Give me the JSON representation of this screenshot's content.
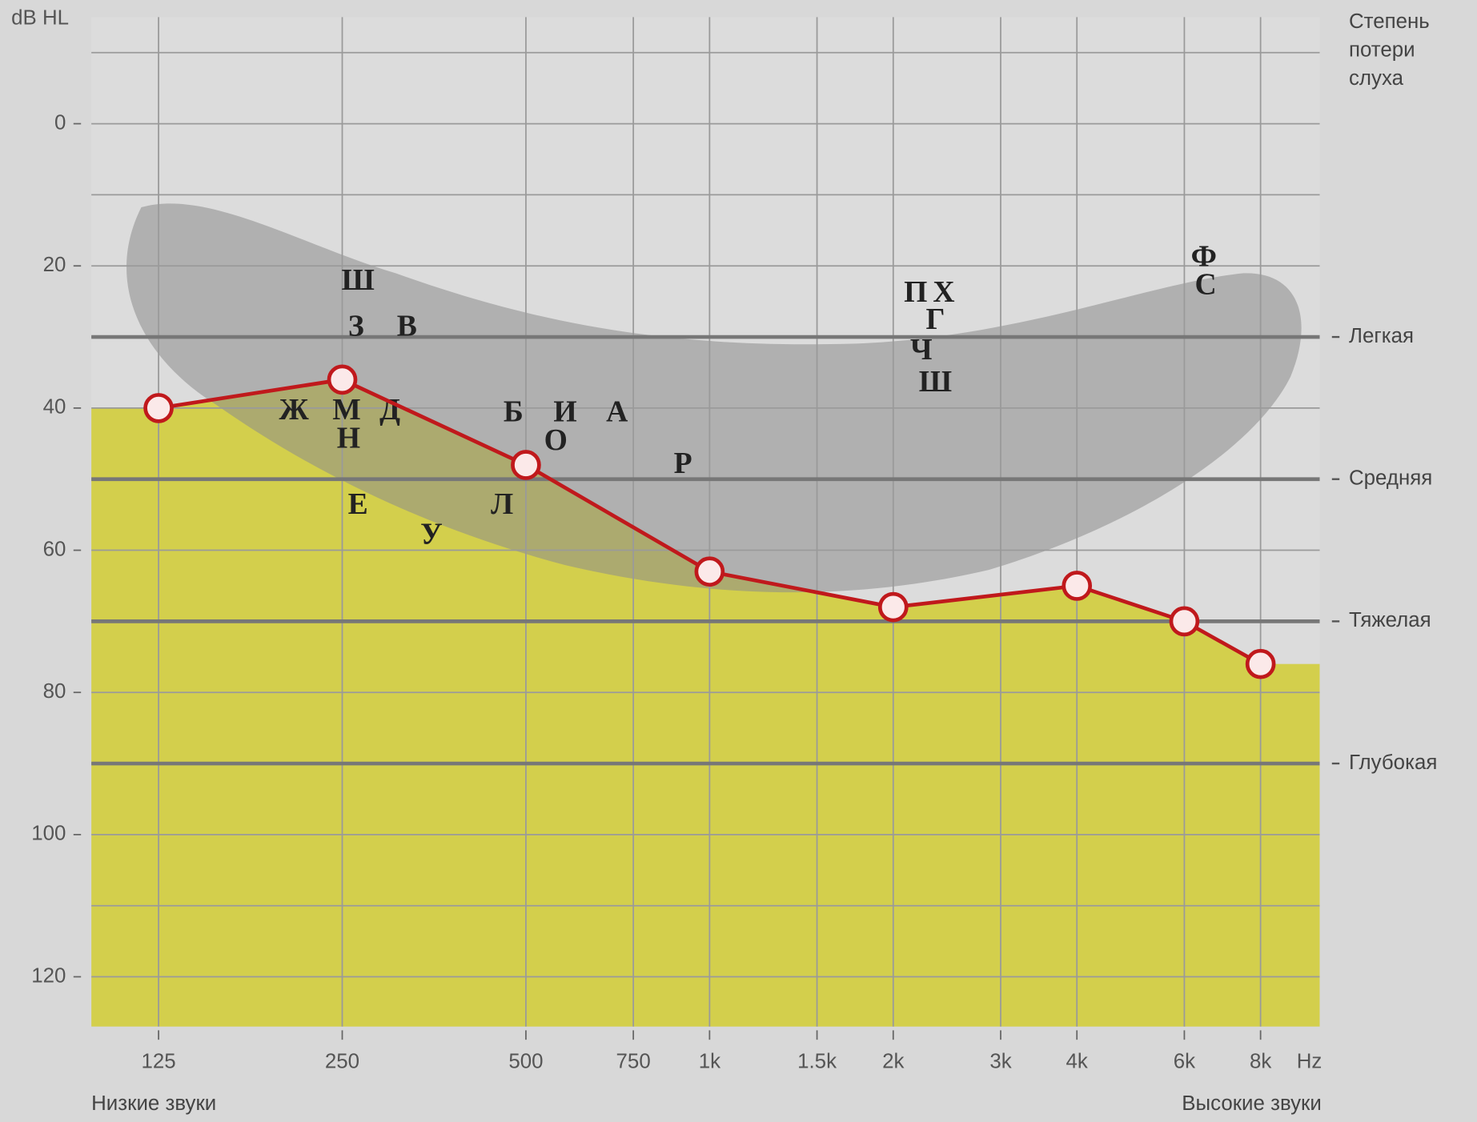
{
  "y_label": "dB HL",
  "degree_title": [
    "Степень",
    "потери",
    "слуха"
  ],
  "low_label": "Низкие звуки",
  "high_label": "Высокие звуки",
  "phonemes": [
    "Ш",
    "З",
    "В",
    "Ж",
    "М",
    "Д",
    "Н",
    "Б",
    "И",
    "А",
    "О",
    "Р",
    "Е",
    "Л",
    "У",
    "П",
    "Х",
    "Г",
    "Ч",
    "Ш",
    "Ф",
    "С"
  ],
  "chart_data": {
    "type": "line",
    "x": [
      125,
      250,
      500,
      1000,
      2000,
      4000,
      6000,
      8000
    ],
    "values": [
      40,
      36,
      48,
      63,
      68,
      65,
      70,
      76
    ],
    "color": "#c0191c",
    "marker_fill": "#fbe9e9",
    "area_color": "#d3cf4c",
    "xscale": "log",
    "xlim": [
      97,
      10000
    ],
    "xticks": [
      125,
      250,
      500,
      750,
      {
        "value": 1000,
        "label": "1k"
      },
      {
        "value": 1500,
        "label": "1.5k"
      },
      {
        "value": 2000,
        "label": "2k"
      },
      {
        "value": 3000,
        "label": "3k"
      },
      {
        "value": 4000,
        "label": "4k"
      },
      {
        "value": 6000,
        "label": "6k"
      },
      {
        "value": 8000,
        "label": "8k"
      }
    ],
    "x_unit": "Hz",
    "ylim": [
      -15,
      127
    ],
    "y_inverted": true,
    "yticks": [
      0,
      20,
      40,
      60,
      80,
      100,
      120
    ],
    "ygrid": [
      -10,
      0,
      10,
      20,
      30,
      40,
      50,
      60,
      70,
      80,
      90,
      100,
      110,
      120
    ],
    "grid": true,
    "degree_lines": [
      {
        "value": 30,
        "label": "Легкая"
      },
      {
        "value": 50,
        "label": "Средняя"
      },
      {
        "value": 70,
        "label": "Тяжелая"
      },
      {
        "value": 90,
        "label": "Глубокая"
      }
    ]
  }
}
